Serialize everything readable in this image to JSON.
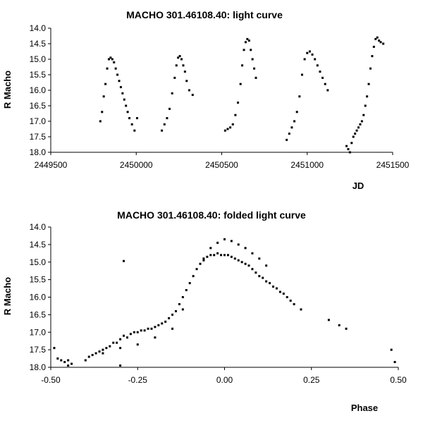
{
  "chart_data": [
    {
      "type": "scatter",
      "title": "MACHO 301.46108.40: light curve",
      "xlabel": "JD",
      "ylabel": "R Macho",
      "xlim": [
        2449500,
        2451500
      ],
      "ylim": [
        18.0,
        14.0
      ],
      "y_inverted": true,
      "x_ticks": [
        "2449500",
        "2450000",
        "2450500",
        "2451000",
        "2451500"
      ],
      "y_ticks": [
        "14.0",
        "14.5",
        "15.0",
        "15.5",
        "16.0",
        "16.5",
        "17.0",
        "17.5",
        "18.0"
      ],
      "grid": false,
      "marker_color": "#000000",
      "x": [
        2449790,
        2449800,
        2449810,
        2449820,
        2449830,
        2449840,
        2449850,
        2449860,
        2449870,
        2449880,
        2449890,
        2449900,
        2449910,
        2449920,
        2449930,
        2449940,
        2449950,
        2449960,
        2449975,
        2449990,
        2450005,
        2450150,
        2450165,
        2450180,
        2450195,
        2450210,
        2450225,
        2450235,
        2450245,
        2450255,
        2450265,
        2450275,
        2450285,
        2450295,
        2450310,
        2450330,
        2450520,
        2450535,
        2450550,
        2450565,
        2450580,
        2450595,
        2450610,
        2450620,
        2450630,
        2450640,
        2450650,
        2450660,
        2450670,
        2450680,
        2450690,
        2450700,
        2450880,
        2450895,
        2450910,
        2450925,
        2450940,
        2450955,
        2450970,
        2450985,
        2451000,
        2451015,
        2451030,
        2451045,
        2451060,
        2451075,
        2451090,
        2451105,
        2451120,
        2451230,
        2451240,
        2451250,
        2451260,
        2451270,
        2451280,
        2451290,
        2451300,
        2451310,
        2451320,
        2451330,
        2451340,
        2451350,
        2451360,
        2451370,
        2451380,
        2451390,
        2451400,
        2451410,
        2451420,
        2451430,
        2451445
      ],
      "y": [
        17.0,
        16.7,
        16.2,
        15.8,
        15.3,
        15.0,
        14.95,
        15.0,
        15.1,
        15.3,
        15.5,
        15.7,
        15.9,
        16.1,
        16.3,
        16.5,
        16.7,
        16.9,
        17.1,
        17.3,
        16.9,
        17.3,
        17.1,
        16.9,
        16.6,
        16.1,
        15.6,
        15.2,
        14.95,
        14.9,
        15.0,
        15.2,
        15.4,
        15.7,
        16.0,
        16.15,
        17.3,
        17.25,
        17.2,
        17.1,
        16.8,
        16.4,
        15.8,
        15.2,
        14.7,
        14.45,
        14.35,
        14.4,
        14.7,
        15.0,
        15.3,
        15.6,
        17.6,
        17.4,
        17.2,
        17.0,
        16.7,
        16.2,
        15.5,
        15.0,
        14.8,
        14.75,
        14.85,
        15.0,
        15.2,
        15.4,
        15.6,
        15.8,
        16.0,
        17.8,
        17.9,
        18.0,
        17.7,
        17.5,
        17.4,
        17.3,
        17.2,
        17.1,
        17.0,
        16.8,
        16.5,
        16.2,
        15.8,
        15.3,
        14.9,
        14.6,
        14.35,
        14.3,
        14.4,
        14.45,
        14.5
      ]
    },
    {
      "type": "scatter",
      "title": "MACHO 301.46108.40: folded light curve",
      "xlabel": "Phase",
      "ylabel": "R Macho",
      "xlim": [
        -0.5,
        0.5
      ],
      "ylim": [
        18.0,
        14.0
      ],
      "y_inverted": true,
      "x_ticks": [
        "-0.50",
        "-0.25",
        "0.00",
        "0.25",
        "0.50"
      ],
      "y_ticks": [
        "14.0",
        "14.5",
        "15.0",
        "15.5",
        "16.0",
        "16.5",
        "17.0",
        "17.5",
        "18.0"
      ],
      "grid": false,
      "marker_color": "#000000",
      "x": [
        -0.49,
        -0.48,
        -0.47,
        -0.46,
        -0.45,
        -0.44,
        -0.4,
        -0.39,
        -0.38,
        -0.37,
        -0.36,
        -0.35,
        -0.34,
        -0.33,
        -0.32,
        -0.31,
        -0.3,
        -0.29,
        -0.28,
        -0.27,
        -0.26,
        -0.25,
        -0.24,
        -0.23,
        -0.22,
        -0.21,
        -0.2,
        -0.19,
        -0.18,
        -0.17,
        -0.16,
        -0.15,
        -0.14,
        -0.13,
        -0.12,
        -0.11,
        -0.1,
        -0.09,
        -0.08,
        -0.07,
        -0.06,
        -0.05,
        -0.04,
        -0.03,
        -0.02,
        -0.01,
        0.0,
        0.01,
        0.02,
        0.03,
        0.04,
        0.05,
        0.06,
        0.07,
        0.08,
        0.09,
        0.1,
        0.11,
        0.12,
        0.13,
        0.14,
        0.15,
        0.16,
        0.17,
        0.18,
        0.19,
        0.2,
        0.22,
        0.3,
        0.33,
        0.35,
        -0.06,
        -0.04,
        -0.02,
        0.0,
        0.02,
        0.04,
        0.06,
        0.08,
        0.1,
        0.12,
        -0.35,
        -0.3,
        -0.25,
        -0.2,
        -0.15,
        -0.12,
        -0.29,
        0.48,
        0.49,
        -0.45,
        -0.3
      ],
      "y": [
        17.45,
        17.75,
        17.8,
        17.85,
        17.8,
        17.9,
        17.8,
        17.7,
        17.65,
        17.6,
        17.55,
        17.5,
        17.45,
        17.4,
        17.3,
        17.3,
        17.2,
        17.1,
        17.15,
        17.05,
        17.0,
        17.0,
        16.95,
        16.95,
        16.9,
        16.9,
        16.85,
        16.8,
        16.75,
        16.7,
        16.6,
        16.5,
        16.4,
        16.2,
        16.0,
        15.8,
        15.6,
        15.4,
        15.2,
        15.05,
        14.95,
        14.85,
        14.8,
        14.8,
        14.75,
        14.8,
        14.8,
        14.8,
        14.85,
        14.9,
        14.95,
        15.0,
        15.05,
        15.1,
        15.2,
        15.3,
        15.4,
        15.45,
        15.55,
        15.6,
        15.7,
        15.75,
        15.85,
        15.9,
        16.0,
        16.1,
        16.2,
        16.35,
        16.65,
        16.8,
        16.9,
        14.9,
        14.6,
        14.45,
        14.35,
        14.4,
        14.5,
        14.6,
        14.75,
        14.9,
        15.1,
        17.6,
        17.45,
        17.35,
        17.15,
        16.9,
        16.35,
        14.97,
        17.5,
        17.85,
        17.95,
        17.95
      ]
    }
  ]
}
